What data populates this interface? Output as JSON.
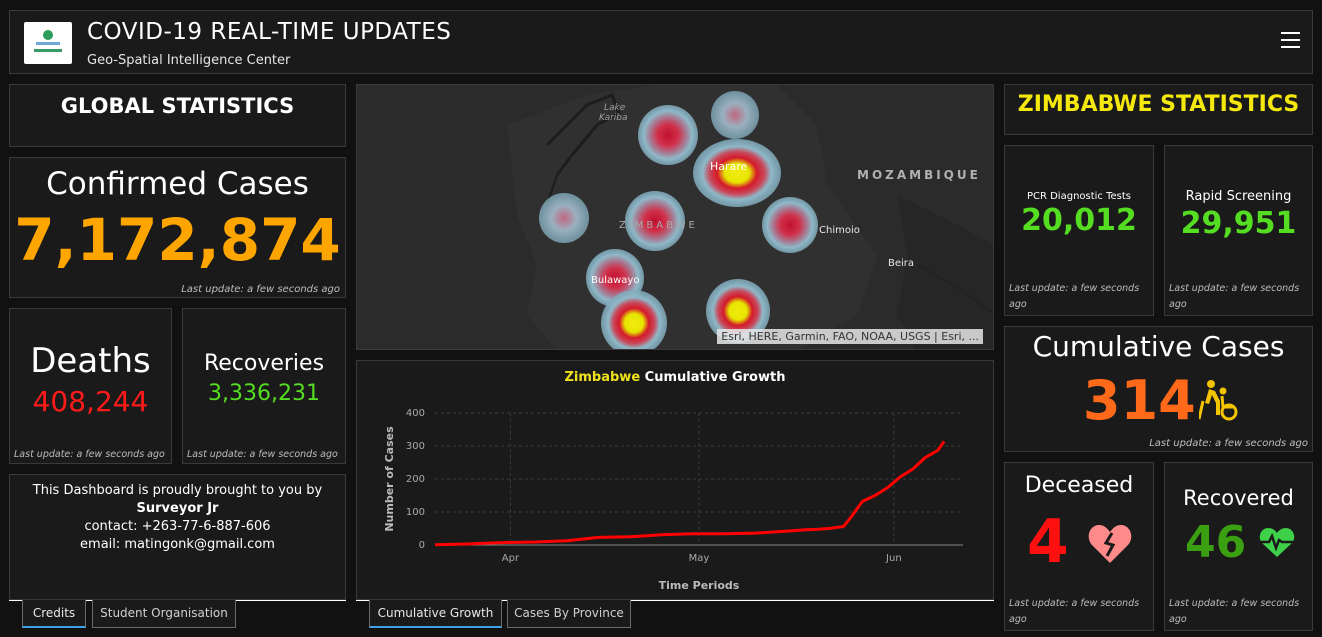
{
  "header": {
    "title": "COVID-19 REAL-TIME UPDATES",
    "subtitle": "Geo-Spatial Intelligence Center",
    "logo_icon": "geospatial-logo",
    "menu_icon": "hamburger-menu-icon"
  },
  "global": {
    "title": "GLOBAL STATISTICS",
    "confirmed_label": "Confirmed Cases",
    "confirmed_value": "7,172,874",
    "deaths_label": "Deaths",
    "deaths_value": "408,244",
    "recoveries_label": "Recoveries",
    "recoveries_value": "3,336,231",
    "last_update": "Last update: a few seconds ago"
  },
  "credits": {
    "line1": "This Dashboard is proudly brought to you by",
    "name": "Surveyor Jr",
    "contact": "contact: +263-77-6-887-606",
    "email": "email: matingonk@gmail.com",
    "tabs": [
      "Credits",
      "Student Organisation"
    ],
    "active_tab": "Credits"
  },
  "map": {
    "labels": {
      "lake": "Lake",
      "kariba": "Kariba",
      "country": "ZIMBABWE",
      "mozambique": "MOZAMBIQUE",
      "harare": "Harare",
      "bulawayo": "Bulawayo",
      "chimoio": "Chimoio",
      "beira": "Beira"
    },
    "attribution": "Esri, HERE, Garmin, FAO, NOAA, USGS | Esri, ...",
    "colors": {
      "base": "#2c2c2c",
      "land": "#333333",
      "water": "#1f1f1f",
      "halo": "#8fb8c8",
      "hot": "#e6e600",
      "mid": "#cc1030"
    }
  },
  "chart_panel": {
    "title_highlight": "Zimbabwe",
    "title_rest": " Cumulative Growth",
    "tabs": [
      "Cumulative Growth",
      "Cases By Province"
    ],
    "active_tab": "Cumulative Growth"
  },
  "chart_data": {
    "type": "line",
    "title": "Zimbabwe Cumulative Growth",
    "xlabel": "Time Periods",
    "ylabel": "Number of Cases",
    "ylim": [
      0,
      400
    ],
    "yticks": [
      0,
      100,
      200,
      300,
      400
    ],
    "xticks": [
      "Apr",
      "May",
      "Jun"
    ],
    "grid": true,
    "series": [
      {
        "color": "#ff0000",
        "x": [
          "2020-03-20",
          "2020-03-25",
          "2020-03-30",
          "2020-04-05",
          "2020-04-10",
          "2020-04-15",
          "2020-04-20",
          "2020-04-25",
          "2020-04-30",
          "2020-05-05",
          "2020-05-10",
          "2020-05-15",
          "2020-05-18",
          "2020-05-20",
          "2020-05-22",
          "2020-05-24",
          "2020-05-25",
          "2020-05-27",
          "2020-05-29",
          "2020-05-31",
          "2020-06-02",
          "2020-06-04",
          "2020-06-06",
          "2020-06-08",
          "2020-06-09"
        ],
        "values": [
          1,
          3,
          7,
          9,
          13,
          23,
          25,
          31,
          34,
          34,
          36,
          42,
          46,
          48,
          51,
          56,
          80,
          132,
          150,
          174,
          206,
          230,
          265,
          287,
          314
        ]
      }
    ]
  },
  "zimbabwe": {
    "title": "ZIMBABWE STATISTICS",
    "pcr_label": "PCR Diagnostic Tests",
    "pcr_value": "20,012",
    "rapid_label": "Rapid Screening",
    "rapid_value": "29,951",
    "cumulative_label": "Cumulative Cases",
    "cumulative_value": "314",
    "deceased_label": "Deceased",
    "deceased_value": "4",
    "recovered_label": "Recovered",
    "recovered_value": "46",
    "last_update": "Last update: a few seconds ago",
    "icons": [
      "wheelchair-assist-icon",
      "broken-heart-icon",
      "heartbeat-icon"
    ]
  },
  "colors": {
    "orange": "#ffa500",
    "red": "#ff1a1a",
    "green": "#55dd22",
    "yellow": "#f5e80c",
    "cumulative": "#ff6a1a",
    "recovered": "#3aa012",
    "panel": "#1a1a1a",
    "tab_accent": "#3ea1e6"
  }
}
